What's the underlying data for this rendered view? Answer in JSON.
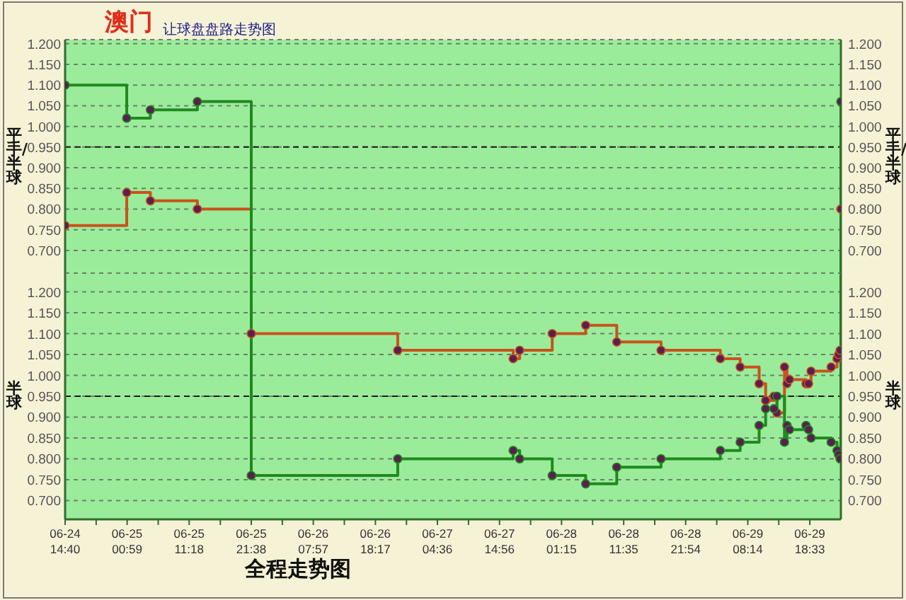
{
  "chart_data": [
    {
      "type": "step",
      "title": "澳门",
      "subtitle": "让球盘盘路走势图",
      "ylabel": "平手/半球",
      "y2label": "平手/半球",
      "x": [
        "--06-24T14:40",
        "--06-25T00:55",
        "--06-25T04:51",
        "--06-25T12:40",
        "--06-25T21:38",
        "--06-29T23:43"
      ],
      "series": [
        {
          "color": "#c9521c",
          "values": [
            0.76,
            0.84,
            0.82,
            0.8,
            null,
            0.8
          ]
        },
        {
          "color": "#1f8a1f",
          "values": [
            1.1,
            1.02,
            1.04,
            1.06,
            null,
            1.06
          ]
        }
      ],
      "xlim": [
        "--06-24T14:40",
        "--06-29T23:43"
      ],
      "ylim": [
        0.645,
        1.21
      ],
      "yticks": [
        {
          "value": 0.7,
          "label": "0.700"
        },
        {
          "value": 0.75,
          "label": "0.750"
        },
        {
          "value": 0.8,
          "label": "0.800"
        },
        {
          "value": 0.85,
          "label": "0.850"
        },
        {
          "value": 0.9,
          "label": "0.900"
        },
        {
          "value": 0.95,
          "label": "0.950"
        },
        {
          "value": 1.0,
          "label": "1.000"
        },
        {
          "value": 1.05,
          "label": "1.050"
        },
        {
          "value": 1.1,
          "label": "1.100"
        },
        {
          "value": 1.15,
          "label": "1.150"
        },
        {
          "value": 1.2,
          "label": "1.200"
        }
      ],
      "y2lim": [
        0.645,
        1.21
      ],
      "y2ticks": [
        {
          "value": 0.7,
          "label": "0.700"
        },
        {
          "value": 0.75,
          "label": "0.750"
        },
        {
          "value": 0.8,
          "label": "0.800"
        },
        {
          "value": 0.85,
          "label": "0.850"
        },
        {
          "value": 0.9,
          "label": "0.900"
        },
        {
          "value": 0.95,
          "label": "0.950"
        },
        {
          "value": 1.0,
          "label": "1.000"
        },
        {
          "value": 1.05,
          "label": "1.050"
        },
        {
          "value": 1.1,
          "label": "1.100"
        },
        {
          "value": 1.15,
          "label": "1.150"
        },
        {
          "value": 1.2,
          "label": "1.200"
        }
      ],
      "grid": "y",
      "marker": "circle",
      "tick_labels": "y",
      "ref_lines": [
        {
          "axis": "y",
          "value": 0.95,
          "color": "#1a1a1a",
          "line_style": "dashed"
        }
      ]
    },
    {
      "type": "step",
      "ylabel": "半球",
      "y2label": "半球",
      "annotations": [
        "全程走势图"
      ],
      "x": [
        "--06-25T21:38",
        "--06-26T22:00",
        "--06-27T17:12",
        "--06-27T18:17",
        "--06-27T23:42",
        "--06-28T05:16",
        "--06-28T10:26",
        "--06-28T17:48",
        "--06-29T03:40",
        "--06-29T06:58",
        "--06-29T10:07",
        "--06-29T11:12",
        "--06-29T12:35",
        "--06-29T13:05",
        "--06-29T14:20",
        "--06-29T14:45",
        "--06-29T15:10",
        "--06-29T17:55",
        "--06-29T18:20",
        "--06-29T18:45",
        "--06-29T22:06",
        "--06-29T23:05",
        "--06-29T23:20",
        "--06-29T23:35"
      ],
      "series": [
        {
          "color": "#c9521c",
          "values": [
            1.1,
            1.06,
            1.04,
            1.06,
            1.1,
            1.12,
            1.08,
            1.06,
            1.04,
            1.02,
            0.98,
            0.94,
            0.95,
            0.91,
            1.02,
            0.98,
            0.99,
            0.98,
            0.98,
            1.01,
            1.02,
            1.04,
            1.05,
            1.06
          ]
        },
        {
          "color": "#1f8a1f",
          "values": [
            0.76,
            0.8,
            0.82,
            0.8,
            0.76,
            0.74,
            0.78,
            0.8,
            0.82,
            0.84,
            0.88,
            0.92,
            0.92,
            0.95,
            0.84,
            0.88,
            0.87,
            0.88,
            0.87,
            0.85,
            0.84,
            0.82,
            0.81,
            0.8
          ]
        }
      ],
      "xlim": [
        "--06-24T14:40",
        "--06-29T23:43"
      ],
      "xticks": [
        {
          "value": "--06-24T14:40",
          "label": "06-24 14:40"
        },
        {
          "value": "--06-24T19:50",
          "label": null
        },
        {
          "value": "--06-25T00:59",
          "label": "06-25 00:59"
        },
        {
          "value": "--06-25T06:09",
          "label": null
        },
        {
          "value": "--06-25T11:18",
          "label": "06-25 11:18"
        },
        {
          "value": "--06-25T16:29",
          "label": null
        },
        {
          "value": "--06-25T21:38",
          "label": "06-25 21:38"
        },
        {
          "value": "--06-26T02:48",
          "label": null
        },
        {
          "value": "--06-26T07:57",
          "label": "06-26 07:57"
        },
        {
          "value": "--06-26T13:07",
          "label": null
        },
        {
          "value": "--06-26T18:17",
          "label": "06-26 18:17"
        },
        {
          "value": "--06-26T23:27",
          "label": null
        },
        {
          "value": "--06-27T04:36",
          "label": "06-27 04:36"
        },
        {
          "value": "--06-27T09:46",
          "label": null
        },
        {
          "value": "--06-27T14:56",
          "label": "06-27 14:56"
        },
        {
          "value": "--06-27T20:06",
          "label": null
        },
        {
          "value": "--06-28T01:15",
          "label": "06-28 01:15"
        },
        {
          "value": "--06-28T06:25",
          "label": null
        },
        {
          "value": "--06-28T11:35",
          "label": "06-28 11:35"
        },
        {
          "value": "--06-28T16:45",
          "label": null
        },
        {
          "value": "--06-28T21:54",
          "label": "06-28 21:54"
        },
        {
          "value": "--06-29T03:04",
          "label": null
        },
        {
          "value": "--06-29T08:14",
          "label": "06-29 08:14"
        },
        {
          "value": "--06-29T13:23",
          "label": null
        },
        {
          "value": "--06-29T18:33",
          "label": "06-29 18:33"
        }
      ],
      "ylim": [
        0.655,
        1.245
      ],
      "yticks": [
        {
          "value": 0.7,
          "label": "0.700"
        },
        {
          "value": 0.75,
          "label": "0.750"
        },
        {
          "value": 0.8,
          "label": "0.800"
        },
        {
          "value": 0.85,
          "label": "0.850"
        },
        {
          "value": 0.9,
          "label": "0.900"
        },
        {
          "value": 0.95,
          "label": "0.950"
        },
        {
          "value": 1.0,
          "label": "1.000"
        },
        {
          "value": 1.05,
          "label": "1.050"
        },
        {
          "value": 1.1,
          "label": "1.100"
        },
        {
          "value": 1.15,
          "label": "1.150"
        },
        {
          "value": 1.2,
          "label": "1.200"
        }
      ],
      "y2lim": [
        0.655,
        1.245
      ],
      "y2ticks": [
        {
          "value": 0.7,
          "label": "0.700"
        },
        {
          "value": 0.75,
          "label": "0.750"
        },
        {
          "value": 0.8,
          "label": "0.800"
        },
        {
          "value": 0.85,
          "label": "0.850"
        },
        {
          "value": 0.9,
          "label": "0.900"
        },
        {
          "value": 0.95,
          "label": "0.950"
        },
        {
          "value": 1.0,
          "label": "1.000"
        },
        {
          "value": 1.05,
          "label": "1.050"
        },
        {
          "value": 1.1,
          "label": "1.100"
        },
        {
          "value": 1.15,
          "label": "1.150"
        },
        {
          "value": 1.2,
          "label": "1.200"
        }
      ],
      "grid": "y",
      "marker": "circle",
      "ref_lines": [
        {
          "axis": "y",
          "value": 0.95,
          "color": "#1a1a1a",
          "line_style": "dashed"
        }
      ]
    }
  ]
}
